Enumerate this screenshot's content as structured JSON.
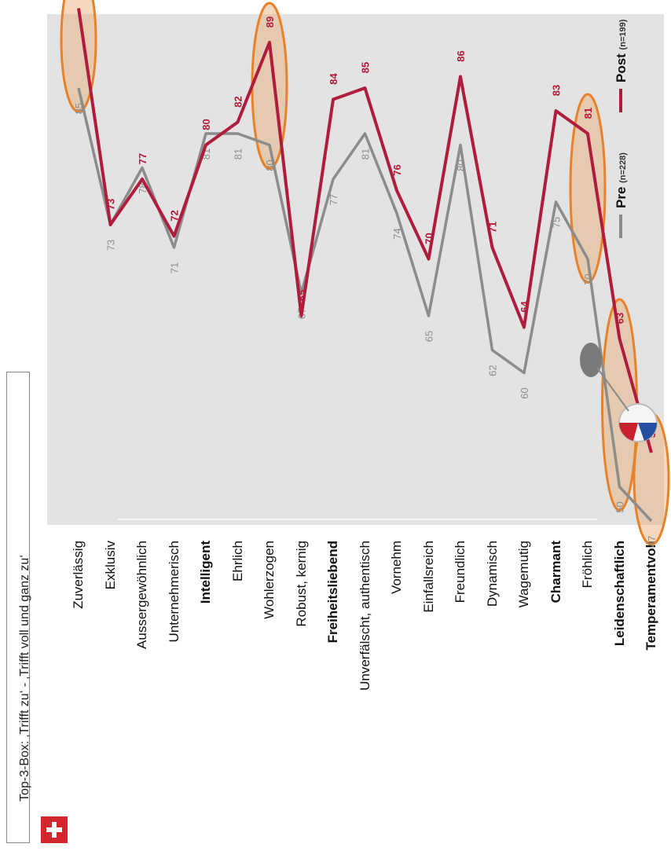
{
  "box_title": "Top-3-Box: ‚Trifft zu‘ - ‚Trifft voll und ganz zu‘",
  "flag_icon": "swiss-flag-icon",
  "chart_data": {
    "type": "line",
    "categories": [
      "Zuverlässig",
      "Exklusiv",
      "Aussergewöhnlich",
      "Unternehmerisch",
      "Intelligent",
      "Ehrlich",
      "Wohlerzogen",
      "Robust, kernig",
      "Freiheitsliebend",
      "Unverfälscht, authentisch",
      "Vornehm",
      "Einfallsreich",
      "Freundlich",
      "Dynamisch",
      "Wagemutig",
      "Charmant",
      "Fröhlich",
      "Leidenschaftlich",
      "Temperamentvoll"
    ],
    "bold_categories": [
      "Intelligent",
      "Freiheitsliebend",
      "Charmant",
      "Leidenschaftlich",
      "Temperamentvoll"
    ],
    "series": [
      {
        "name": "Pre",
        "n_label": "(n=228)",
        "color": "#8c8c8c",
        "values": [
          85,
          73,
          78,
          71,
          81,
          81,
          80,
          67,
          77,
          81,
          74,
          65,
          80,
          62,
          60,
          75,
          70,
          50,
          47
        ]
      },
      {
        "name": "Post",
        "n_label": "(n=199)",
        "color": "#b01c3c",
        "values": [
          92,
          73,
          77,
          72,
          80,
          82,
          89,
          65,
          84,
          85,
          76,
          70,
          86,
          71,
          64,
          83,
          81,
          63,
          53
        ]
      }
    ],
    "ylim": [
      40,
      100
    ],
    "highlighted_categories": [
      "Zuverlässig",
      "Wohlerzogen",
      "Fröhlich",
      "Leidenschaftlich",
      "Temperamentvoll"
    ],
    "highlight_color": "#e8822a"
  }
}
